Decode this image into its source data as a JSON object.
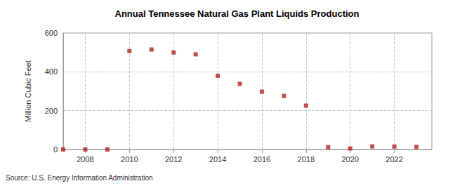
{
  "chart_data": {
    "type": "scatter",
    "title": "Annual Tennessee Natural Gas Plant Liquids Production",
    "y_label": "Million Cubic Feet",
    "source": "Source: U.S. Energy Information Administration",
    "x": [
      2007,
      2008,
      2009,
      2010,
      2011,
      2012,
      2013,
      2014,
      2015,
      2016,
      2017,
      2018,
      2019,
      2020,
      2021,
      2022,
      2023
    ],
    "values": [
      0,
      0,
      0,
      507,
      515,
      500,
      490,
      380,
      338,
      298,
      276,
      226,
      12,
      5,
      16,
      15,
      13
    ],
    "color": "#b22222",
    "marker": "square",
    "xlim": [
      2007,
      2023.7
    ],
    "xticks": [
      2008,
      2010,
      2012,
      2014,
      2016,
      2018,
      2020,
      2022
    ],
    "ylim": [
      0,
      600
    ],
    "yticks": [
      0,
      200,
      400,
      600
    ],
    "grid": true
  }
}
